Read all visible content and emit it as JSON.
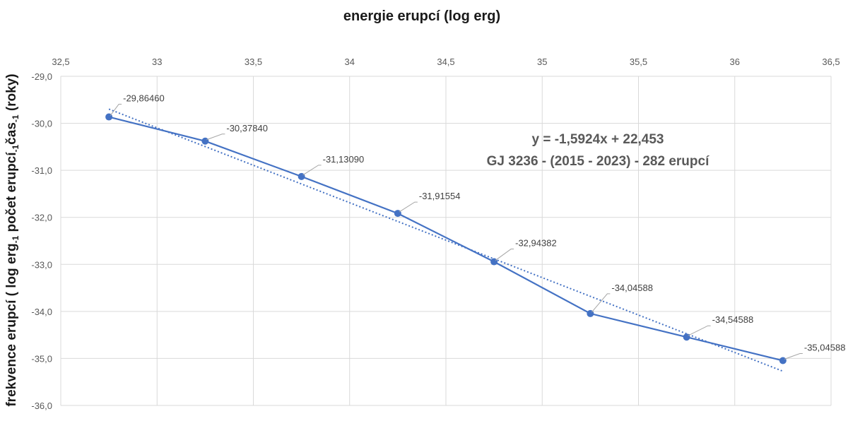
{
  "chart_data": {
    "type": "line",
    "title": "energie erupcí (log erg)",
    "ylabel_parts": [
      "frekvence erupcí ( log erg",
      "-1",
      " počet erupcí",
      "-1",
      "čas",
      "-1",
      " (roky)"
    ],
    "ylabel_full": "frekvence erupcí ( log erg-1 počet erupcí-1čas-1 (roky)",
    "x_axis_position": "top",
    "xlim": [
      32.5,
      36.5
    ],
    "ylim": [
      -36.0,
      -29.0
    ],
    "x_ticks": [
      "32,5",
      "33",
      "33,5",
      "34",
      "34,5",
      "35",
      "35,5",
      "36",
      "36,5"
    ],
    "y_ticks": [
      "-29,0",
      "-30,0",
      "-31,0",
      "-32,0",
      "-33,0",
      "-34,0",
      "-35,0",
      "-36,0"
    ],
    "x_tick_values": [
      32.5,
      33,
      33.5,
      34,
      34.5,
      35,
      35.5,
      36,
      36.5
    ],
    "y_tick_values": [
      -29,
      -30,
      -31,
      -32,
      -33,
      -34,
      -35,
      -36
    ],
    "grid": true,
    "series": [
      {
        "x": [
          32.75,
          33.25,
          33.75,
          34.25,
          34.75,
          35.25,
          35.75,
          36.25
        ],
        "y": [
          -29.8646,
          -30.3784,
          -31.1309,
          -31.91554,
          -32.94382,
          -34.04588,
          -34.54588,
          -35.04588
        ],
        "labels": [
          "-29,86460",
          "-30,37840",
          "-31,13090",
          "-31,91554",
          "-32,94382",
          "-34,04588",
          "-34,54588",
          "-35,04588"
        ],
        "color": "#4472c4"
      }
    ],
    "trendline": {
      "type": "linear",
      "slope": -1.5924,
      "intercept": 22.453,
      "style": "dotted"
    },
    "annotation": {
      "equation": "y = -1,5924x + 22,453",
      "dataset": "GJ 3236 - (2015 - 2023) - 282 erupcí"
    }
  }
}
